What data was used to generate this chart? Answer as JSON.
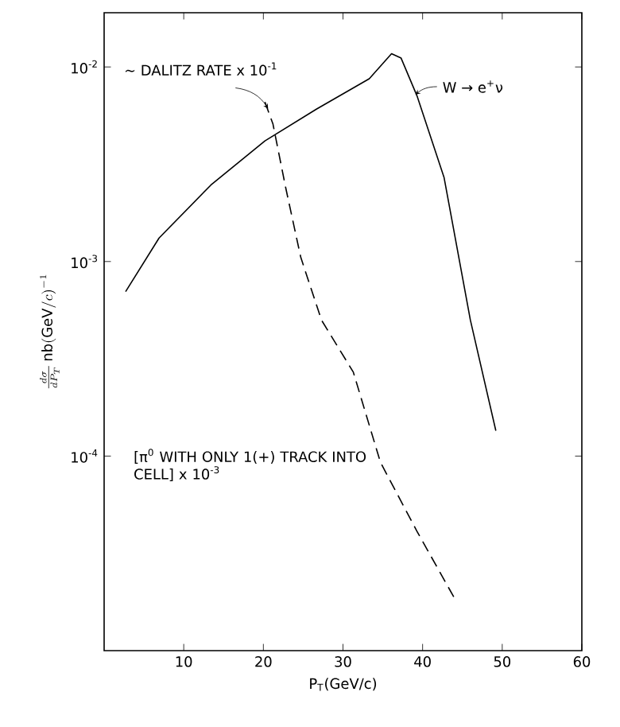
{
  "chart_data": {
    "type": "line",
    "xlabel": "P$_{T}$(GeV/c)",
    "ylabel": "\\frac{d\\sigma}{dP_T}\\,\\mathrm{nb}(\\mathrm{GeV}/c)^{-1}",
    "annotations": [
      {
        "text": "∼ DALITZ RATE x 10$^{-1}$",
        "x": 20.6,
        "y": 0.0061
      },
      {
        "text": "W → e$^{+}$ν",
        "x": 39.1,
        "y": 0.0072
      },
      "[π$^{0}$ WITH ONLY 1(+) TRACK INTO CELL] x 10$^{-3}$"
    ],
    "log": "y",
    "xlim": [
      0,
      60
    ],
    "ylim": [
      1e-05,
      0.019
    ],
    "xticks": [
      10,
      20,
      30,
      40,
      50,
      60
    ],
    "yticks": [
      {
        "value": 0.0001,
        "label": "10$^{-4}$"
      },
      {
        "value": 0.001,
        "label": "10$^{-3}$"
      },
      {
        "value": 0.01,
        "label": "10$^{-2}$"
      }
    ],
    "series": [
      {
        "color": "#000000",
        "line_style": "solid",
        "x": [
          2.7,
          6.9,
          13.4,
          20.2,
          26.7,
          33.3,
          36.1,
          37.3,
          39.3,
          42.7,
          46.0,
          49.2
        ],
        "values": [
          0.0007,
          0.00132,
          0.00247,
          0.00417,
          0.00608,
          0.0087,
          0.0117,
          0.0111,
          0.0071,
          0.0027,
          0.0005,
          0.000135
        ]
      },
      {
        "color": "#000000",
        "line_style": "dashed",
        "x": [
          20.2,
          21.2,
          22.8,
          24.7,
          27.3,
          31.3,
          34.7,
          39.3,
          44.2
        ],
        "values": [
          0.0066,
          0.0051,
          0.0024,
          0.00105,
          0.0005,
          0.00027,
          9.3e-05,
          4.1e-05,
          1.8e-05
        ]
      }
    ]
  }
}
